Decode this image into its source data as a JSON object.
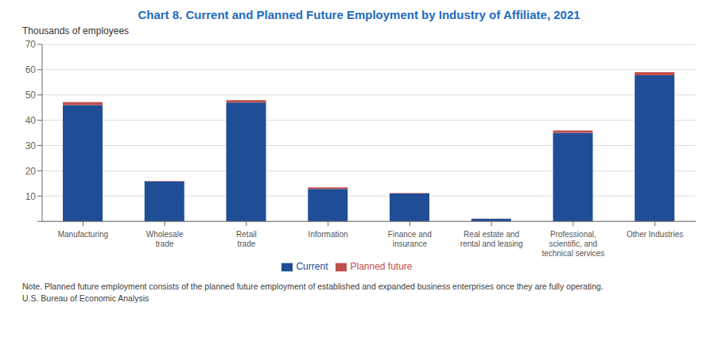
{
  "chart_data": {
    "type": "bar",
    "title": "Chart 8. Current and Planned Future Employment by Industry of Affiliate, 2021",
    "y_label": "Thousands of employees",
    "categories": [
      "Manufacturing",
      "Wholesale\ntrade",
      "Retail\ntrade",
      "Information",
      "Finance and\ninsurance",
      "Real estate and\nrental and leasing",
      "Professional,\nscientific, and\ntechnical services",
      "Other Industries"
    ],
    "series": [
      {
        "name": "Current",
        "color": "#1F4E97",
        "values": [
          46.0,
          15.8,
          47.0,
          12.8,
          11.0,
          1.0,
          35.0,
          57.8
        ]
      },
      {
        "name": "Planned future",
        "color": "#C0504D",
        "values": [
          1.2,
          0.2,
          1.0,
          0.7,
          0.2,
          0.1,
          1.0,
          1.2
        ]
      }
    ],
    "stacked": true,
    "ylim": [
      0,
      70
    ],
    "yticks": [
      {
        "value": 0,
        "label": ""
      },
      10,
      20,
      30,
      40,
      50,
      60,
      70
    ],
    "grid": true,
    "legend": "bottom",
    "annotations": [
      "Note. Planned future employment consists of the planned future employment of established and expanded business enterprises once they are fully operating.",
      "U.S. Bureau of Economic Analysis"
    ]
  }
}
